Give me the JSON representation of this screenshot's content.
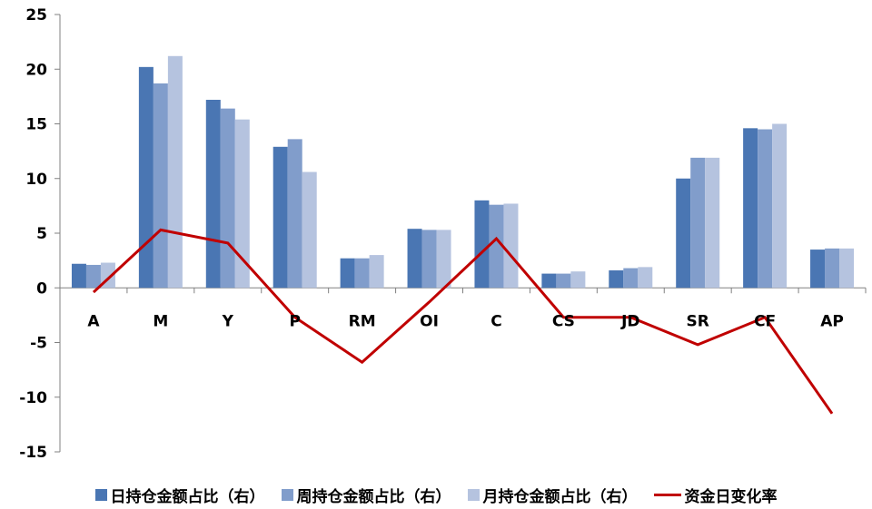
{
  "chart_data": {
    "type": "bar",
    "categories": [
      "A",
      "M",
      "Y",
      "P",
      "RM",
      "OI",
      "C",
      "CS",
      "JD",
      "SR",
      "CF",
      "AP"
    ],
    "ylim": [
      -15,
      25
    ],
    "yticks": [
      25,
      20,
      15,
      10,
      5,
      0,
      -5,
      -10,
      -15
    ],
    "series": [
      {
        "name": "日持仓金额占比（右）",
        "type": "bar",
        "color": "#4a76b3",
        "values": [
          2.2,
          20.2,
          17.2,
          12.9,
          2.7,
          5.4,
          8.0,
          1.3,
          1.6,
          10.0,
          14.6,
          3.5
        ]
      },
      {
        "name": "周持仓金额占比（右）",
        "type": "bar",
        "color": "#819dcb",
        "values": [
          2.1,
          18.7,
          16.4,
          13.6,
          2.7,
          5.3,
          7.6,
          1.3,
          1.8,
          11.9,
          14.5,
          3.6
        ]
      },
      {
        "name": "月持仓金额占比（右）",
        "type": "bar",
        "color": "#b5c3df",
        "values": [
          2.3,
          21.2,
          15.4,
          10.6,
          3.0,
          5.3,
          7.7,
          1.5,
          1.9,
          11.9,
          15.0,
          3.6
        ]
      },
      {
        "name": "资金日变化率",
        "type": "line",
        "color": "#c00000",
        "values": [
          -0.4,
          5.3,
          4.1,
          -2.7,
          -6.8,
          -1.3,
          4.5,
          -2.7,
          -2.7,
          -5.2,
          -2.7,
          -11.5
        ]
      }
    ],
    "legend_position": "bottom",
    "grid": false
  }
}
